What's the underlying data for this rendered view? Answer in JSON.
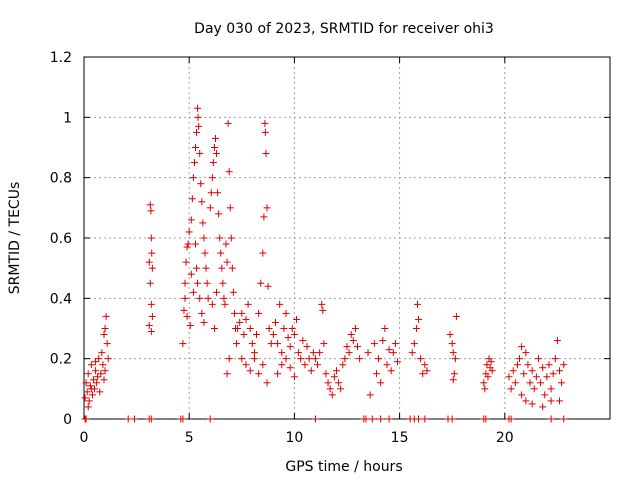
{
  "chart_data": {
    "type": "scatter",
    "title": "Day 030 of 2023, SRMTID for receiver ohi3",
    "xlabel": "GPS time / hours",
    "ylabel": "SRMTID / TECUs",
    "xlim": [
      0,
      25
    ],
    "ylim": [
      0,
      1.2
    ],
    "x_ticks": [
      "0",
      "5",
      "10",
      "15",
      "20"
    ],
    "x_tick_values": [
      0,
      5,
      10,
      15,
      20
    ],
    "y_ticks": [
      "0",
      "0.2",
      "0.4",
      "0.6",
      "0.8",
      "1",
      "1.2"
    ],
    "y_tick_values": [
      0,
      0.2,
      0.4,
      0.6,
      0.8,
      1.0,
      1.2
    ],
    "grid": true,
    "marker": "+",
    "color": "#e00000",
    "series": [
      {
        "name": "SRMTID",
        "points": [
          [
            0.05,
            0.07
          ],
          [
            0.1,
            0.12
          ],
          [
            0.15,
            0.09
          ],
          [
            0.2,
            0.15
          ],
          [
            0.25,
            0.06
          ],
          [
            0.3,
            0.11
          ],
          [
            0.35,
            0.18
          ],
          [
            0.4,
            0.08
          ],
          [
            0.45,
            0.13
          ],
          [
            0.5,
            0.1
          ],
          [
            0.55,
            0.16
          ],
          [
            0.6,
            0.12
          ],
          [
            0.65,
            0.14
          ],
          [
            0.7,
            0.2
          ],
          [
            0.75,
            0.09
          ],
          [
            0.8,
            0.15
          ],
          [
            0.85,
            0.22
          ],
          [
            0.9,
            0.18
          ],
          [
            0.95,
            0.28
          ],
          [
            1.0,
            0.3
          ],
          [
            1.05,
            0.34
          ],
          [
            1.1,
            0.25
          ],
          [
            1.15,
            0.2
          ],
          [
            0.95,
            0.13
          ],
          [
            1.0,
            0.16
          ],
          [
            0.55,
            0.19
          ],
          [
            0.35,
            0.1
          ],
          [
            0.2,
            0.04
          ],
          [
            0.1,
            0.0
          ],
          [
            0.05,
            0.0
          ],
          [
            2.1,
            0.0
          ],
          [
            2.4,
            0.0
          ],
          [
            3.1,
            0.0
          ],
          [
            3.2,
            0.0
          ],
          [
            4.6,
            0.0
          ],
          [
            4.7,
            0.0
          ],
          [
            6.0,
            0.0
          ],
          [
            11.0,
            0.0
          ],
          [
            13.3,
            0.0
          ],
          [
            13.4,
            0.0
          ],
          [
            13.7,
            0.0
          ],
          [
            14.1,
            0.0
          ],
          [
            14.5,
            0.0
          ],
          [
            15.5,
            0.0
          ],
          [
            15.7,
            0.0
          ],
          [
            15.9,
            0.0
          ],
          [
            16.2,
            0.0
          ],
          [
            17.3,
            0.0
          ],
          [
            17.5,
            0.0
          ],
          [
            19.0,
            0.0
          ],
          [
            19.1,
            0.0
          ],
          [
            20.2,
            0.0
          ],
          [
            20.3,
            0.0
          ],
          [
            22.2,
            0.0
          ],
          [
            22.8,
            0.0
          ],
          [
            3.15,
            0.71
          ],
          [
            3.18,
            0.69
          ],
          [
            3.2,
            0.6
          ],
          [
            3.22,
            0.55
          ],
          [
            3.25,
            0.5
          ],
          [
            3.1,
            0.52
          ],
          [
            3.15,
            0.45
          ],
          [
            3.2,
            0.38
          ],
          [
            3.25,
            0.34
          ],
          [
            3.1,
            0.31
          ],
          [
            3.2,
            0.29
          ],
          [
            4.7,
            0.25
          ],
          [
            4.75,
            0.36
          ],
          [
            4.8,
            0.45
          ],
          [
            4.85,
            0.52
          ],
          [
            4.9,
            0.57
          ],
          [
            4.95,
            0.58
          ],
          [
            5.0,
            0.62
          ],
          [
            4.8,
            0.4
          ],
          [
            4.9,
            0.34
          ],
          [
            5.05,
            0.31
          ],
          [
            5.1,
            0.66
          ],
          [
            5.15,
            0.73
          ],
          [
            5.2,
            0.8
          ],
          [
            5.25,
            0.85
          ],
          [
            5.3,
            0.9
          ],
          [
            5.35,
            0.95
          ],
          [
            5.4,
            1.03
          ],
          [
            5.42,
            1.0
          ],
          [
            5.45,
            0.97
          ],
          [
            5.5,
            0.88
          ],
          [
            5.55,
            0.78
          ],
          [
            5.6,
            0.72
          ],
          [
            5.65,
            0.65
          ],
          [
            5.7,
            0.6
          ],
          [
            5.75,
            0.55
          ],
          [
            5.8,
            0.5
          ],
          [
            5.85,
            0.45
          ],
          [
            5.9,
            0.4
          ],
          [
            5.3,
            0.58
          ],
          [
            5.35,
            0.5
          ],
          [
            5.4,
            0.45
          ],
          [
            5.5,
            0.4
          ],
          [
            5.6,
            0.35
          ],
          [
            5.7,
            0.32
          ],
          [
            5.2,
            0.42
          ],
          [
            5.1,
            0.48
          ],
          [
            6.0,
            0.7
          ],
          [
            6.05,
            0.75
          ],
          [
            6.1,
            0.8
          ],
          [
            6.15,
            0.85
          ],
          [
            6.2,
            0.9
          ],
          [
            6.25,
            0.93
          ],
          [
            6.3,
            0.88
          ],
          [
            6.35,
            0.75
          ],
          [
            6.4,
            0.68
          ],
          [
            6.45,
            0.6
          ],
          [
            6.5,
            0.55
          ],
          [
            6.55,
            0.5
          ],
          [
            6.6,
            0.45
          ],
          [
            6.65,
            0.4
          ],
          [
            6.7,
            0.38
          ],
          [
            6.75,
            0.58
          ],
          [
            6.8,
            0.52
          ],
          [
            6.85,
            0.98
          ],
          [
            6.9,
            0.82
          ],
          [
            6.95,
            0.7
          ],
          [
            7.0,
            0.6
          ],
          [
            7.05,
            0.5
          ],
          [
            7.1,
            0.42
          ],
          [
            7.15,
            0.35
          ],
          [
            7.2,
            0.3
          ],
          [
            7.25,
            0.25
          ],
          [
            6.9,
            0.2
          ],
          [
            6.8,
            0.15
          ],
          [
            6.2,
            0.3
          ],
          [
            6.1,
            0.38
          ],
          [
            6.3,
            0.42
          ],
          [
            7.3,
            0.3
          ],
          [
            7.4,
            0.32
          ],
          [
            7.5,
            0.35
          ],
          [
            7.6,
            0.28
          ],
          [
            7.7,
            0.33
          ],
          [
            7.8,
            0.38
          ],
          [
            7.9,
            0.3
          ],
          [
            8.0,
            0.25
          ],
          [
            8.1,
            0.22
          ],
          [
            8.2,
            0.28
          ],
          [
            8.3,
            0.35
          ],
          [
            8.4,
            0.45
          ],
          [
            8.5,
            0.55
          ],
          [
            8.55,
            0.67
          ],
          [
            8.6,
            0.98
          ],
          [
            8.62,
            0.95
          ],
          [
            8.65,
            0.88
          ],
          [
            8.7,
            0.7
          ],
          [
            8.75,
            0.44
          ],
          [
            8.8,
            0.3
          ],
          [
            8.9,
            0.25
          ],
          [
            7.5,
            0.2
          ],
          [
            7.7,
            0.18
          ],
          [
            7.9,
            0.16
          ],
          [
            8.1,
            0.2
          ],
          [
            8.3,
            0.15
          ],
          [
            8.5,
            0.18
          ],
          [
            8.7,
            0.12
          ],
          [
            9.0,
            0.28
          ],
          [
            9.1,
            0.32
          ],
          [
            9.2,
            0.25
          ],
          [
            9.3,
            0.38
          ],
          [
            9.4,
            0.22
          ],
          [
            9.5,
            0.3
          ],
          [
            9.6,
            0.35
          ],
          [
            9.7,
            0.27
          ],
          [
            9.8,
            0.24
          ],
          [
            9.9,
            0.3
          ],
          [
            10.0,
            0.28
          ],
          [
            10.1,
            0.33
          ],
          [
            10.2,
            0.22
          ],
          [
            10.3,
            0.2
          ],
          [
            10.4,
            0.26
          ],
          [
            10.5,
            0.18
          ],
          [
            10.6,
            0.24
          ],
          [
            10.7,
            0.2
          ],
          [
            10.8,
            0.16
          ],
          [
            10.9,
            0.22
          ],
          [
            9.2,
            0.15
          ],
          [
            9.4,
            0.18
          ],
          [
            9.6,
            0.2
          ],
          [
            9.8,
            0.17
          ],
          [
            10.0,
            0.14
          ],
          [
            11.0,
            0.2
          ],
          [
            11.1,
            0.18
          ],
          [
            11.2,
            0.22
          ],
          [
            11.3,
            0.38
          ],
          [
            11.35,
            0.36
          ],
          [
            11.4,
            0.25
          ],
          [
            11.5,
            0.15
          ],
          [
            11.6,
            0.12
          ],
          [
            11.7,
            0.1
          ],
          [
            11.8,
            0.08
          ],
          [
            11.9,
            0.14
          ],
          [
            12.0,
            0.16
          ],
          [
            12.1,
            0.12
          ],
          [
            12.2,
            0.1
          ],
          [
            12.3,
            0.18
          ],
          [
            12.4,
            0.2
          ],
          [
            12.5,
            0.24
          ],
          [
            12.6,
            0.22
          ],
          [
            12.7,
            0.28
          ],
          [
            12.8,
            0.26
          ],
          [
            12.9,
            0.3
          ],
          [
            13.0,
            0.24
          ],
          [
            13.1,
            0.2
          ],
          [
            13.5,
            0.22
          ],
          [
            13.6,
            0.08
          ],
          [
            13.8,
            0.25
          ],
          [
            13.9,
            0.15
          ],
          [
            14.0,
            0.2
          ],
          [
            14.1,
            0.12
          ],
          [
            14.2,
            0.26
          ],
          [
            14.3,
            0.3
          ],
          [
            14.4,
            0.18
          ],
          [
            14.5,
            0.23
          ],
          [
            14.6,
            0.16
          ],
          [
            14.7,
            0.22
          ],
          [
            14.8,
            0.25
          ],
          [
            14.9,
            0.19
          ],
          [
            15.6,
            0.22
          ],
          [
            15.7,
            0.25
          ],
          [
            15.8,
            0.3
          ],
          [
            15.85,
            0.38
          ],
          [
            15.9,
            0.33
          ],
          [
            16.0,
            0.2
          ],
          [
            16.1,
            0.15
          ],
          [
            16.2,
            0.18
          ],
          [
            16.3,
            0.16
          ],
          [
            17.4,
            0.28
          ],
          [
            17.5,
            0.25
          ],
          [
            17.55,
            0.22
          ],
          [
            17.6,
            0.15
          ],
          [
            17.7,
            0.34
          ],
          [
            17.65,
            0.2
          ],
          [
            17.55,
            0.13
          ],
          [
            19.0,
            0.12
          ],
          [
            19.05,
            0.1
          ],
          [
            19.1,
            0.15
          ],
          [
            19.15,
            0.18
          ],
          [
            19.2,
            0.14
          ],
          [
            19.25,
            0.2
          ],
          [
            19.3,
            0.17
          ],
          [
            19.35,
            0.19
          ],
          [
            19.4,
            0.16
          ],
          [
            20.2,
            0.14
          ],
          [
            20.3,
            0.1
          ],
          [
            20.4,
            0.16
          ],
          [
            20.5,
            0.12
          ],
          [
            20.6,
            0.18
          ],
          [
            20.7,
            0.2
          ],
          [
            20.8,
            0.24
          ],
          [
            20.9,
            0.15
          ],
          [
            21.0,
            0.22
          ],
          [
            21.1,
            0.18
          ],
          [
            21.2,
            0.12
          ],
          [
            21.3,
            0.16
          ],
          [
            21.4,
            0.1
          ],
          [
            21.5,
            0.14
          ],
          [
            21.6,
            0.2
          ],
          [
            21.7,
            0.12
          ],
          [
            21.8,
            0.17
          ],
          [
            21.9,
            0.08
          ],
          [
            22.0,
            0.14
          ],
          [
            22.1,
            0.18
          ],
          [
            22.2,
            0.1
          ],
          [
            22.3,
            0.15
          ],
          [
            22.4,
            0.2
          ],
          [
            22.5,
            0.26
          ],
          [
            22.6,
            0.16
          ],
          [
            22.7,
            0.12
          ],
          [
            22.8,
            0.18
          ],
          [
            21.0,
            0.06
          ],
          [
            21.3,
            0.05
          ],
          [
            21.8,
            0.04
          ],
          [
            22.2,
            0.06
          ],
          [
            20.8,
            0.08
          ],
          [
            22.6,
            0.06
          ]
        ]
      }
    ]
  }
}
